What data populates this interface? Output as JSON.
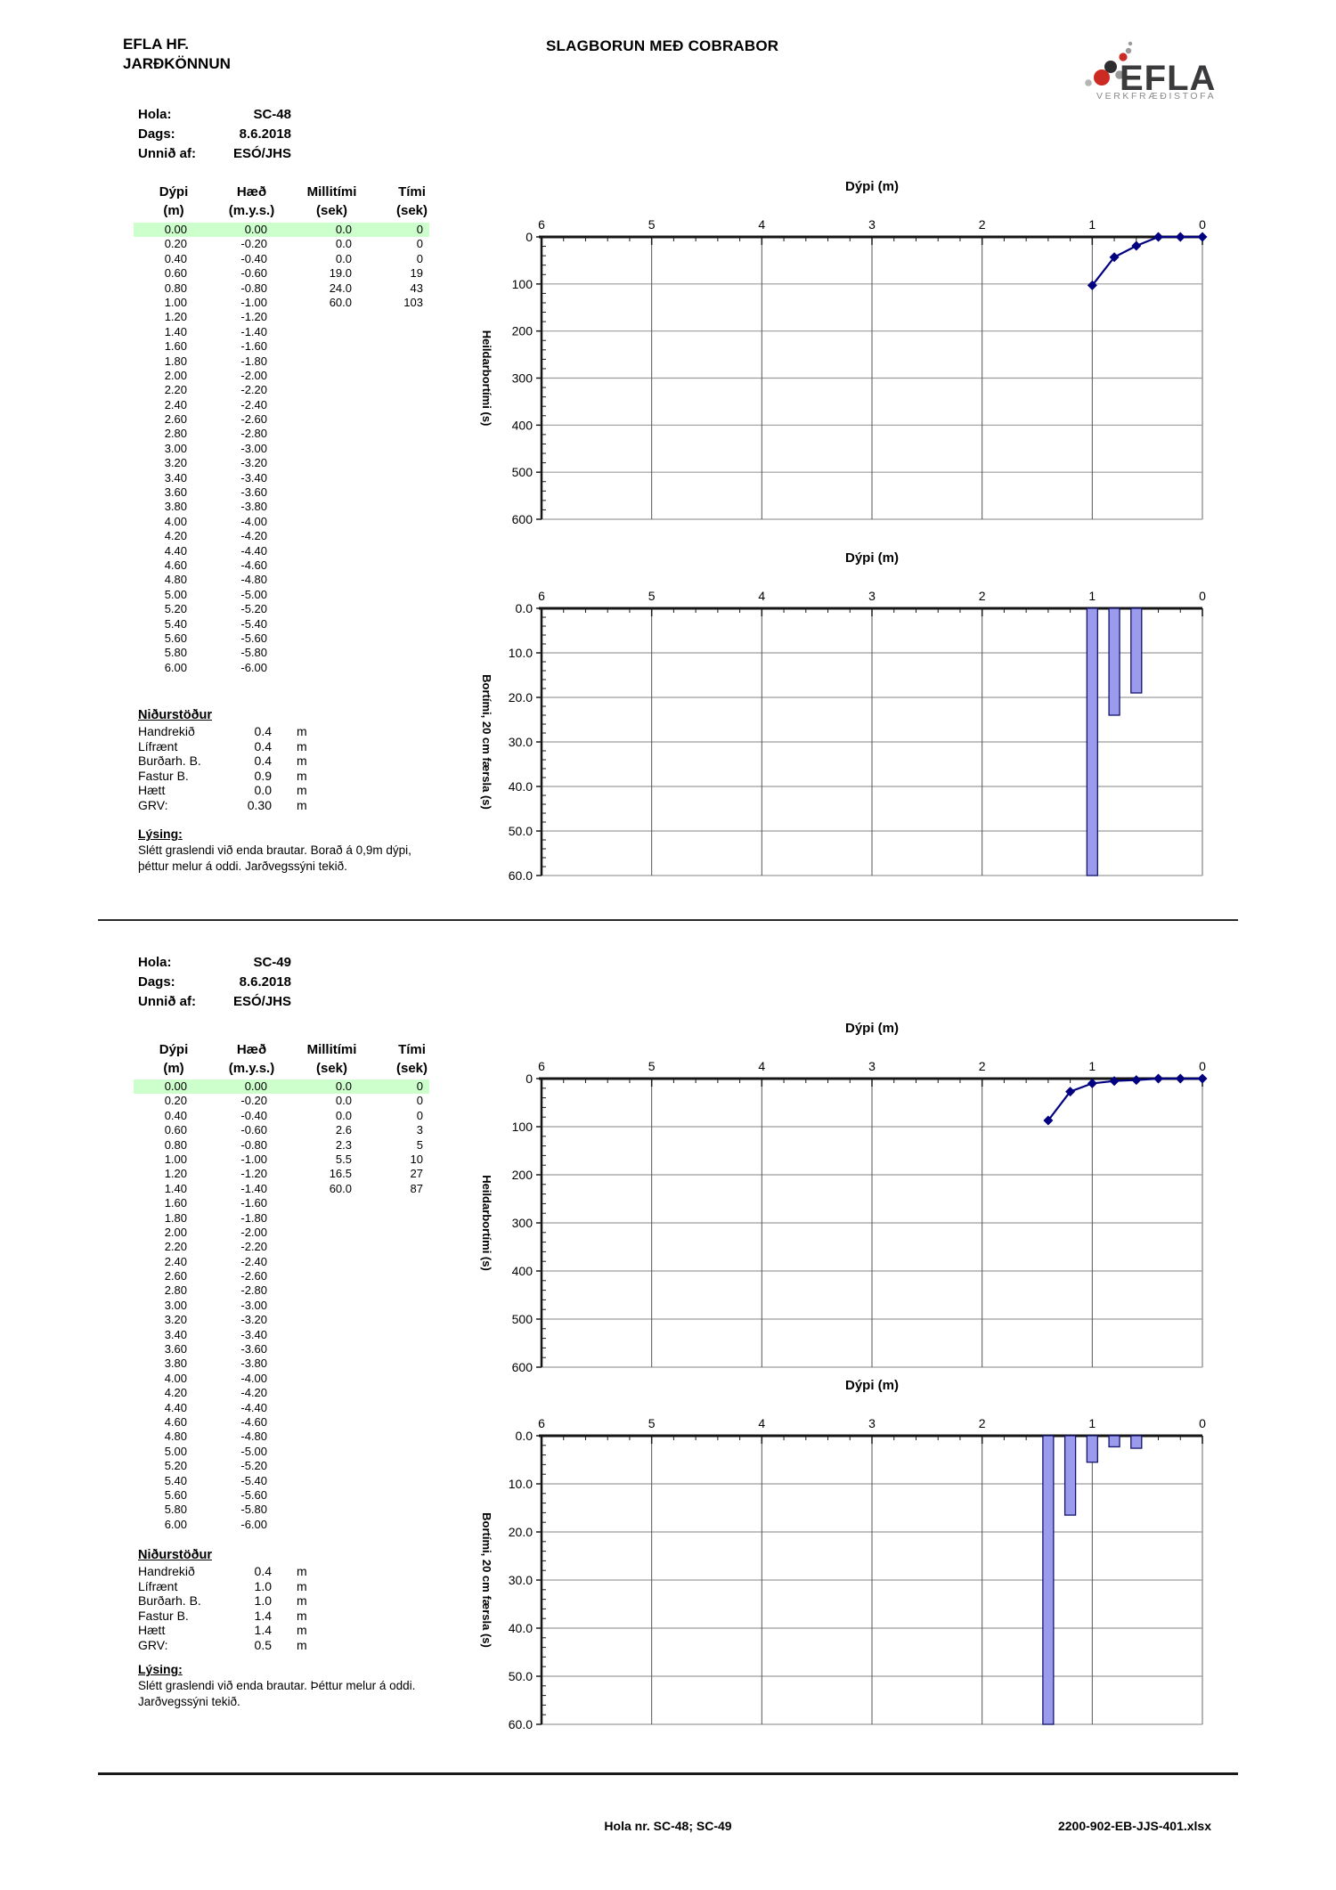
{
  "page": {
    "company": "EFLA HF.",
    "department": "JARÐKÖNNUN",
    "title": "SLAGBORUN MEÐ COBRABOR",
    "logo": {
      "text": "EFLA",
      "subtitle": "VERKFRÆÐISTOFA"
    },
    "footer": {
      "center": "Hola nr. SC-48; SC-49",
      "right": "2200-902-EB-JJS-401.xlsx"
    }
  },
  "colors": {
    "row_highlight": "#CCFFCC",
    "line_series": "#000080",
    "bar_fill": "#9B9BEE",
    "bar_border": "#14146E",
    "grid_h": "#9C9C9C",
    "grid_v": "#555555",
    "axis": "#151515",
    "logo_red": "#CC2B24",
    "logo_dark": "#2E2E30",
    "logo_gray": "#9A9A9A"
  },
  "tables": {
    "headers": [
      "Dýpi",
      "Hæð",
      "Millitími",
      "Tími"
    ],
    "units": [
      "(m)",
      "(m.y.s.)",
      "(sek)",
      "(sek)"
    ]
  },
  "sections": [
    {
      "meta": {
        "hola_label": "Hola:",
        "hola": "SC-48",
        "dags_label": "Dags:",
        "dags": "8.6.2018",
        "unnid_label": "Unnið af:",
        "unnid": "ESÓ/JHS"
      },
      "rows": [
        [
          "0.00",
          "0.00",
          "0.0",
          "0"
        ],
        [
          "0.20",
          "-0.20",
          "0.0",
          "0"
        ],
        [
          "0.40",
          "-0.40",
          "0.0",
          "0"
        ],
        [
          "0.60",
          "-0.60",
          "19.0",
          "19"
        ],
        [
          "0.80",
          "-0.80",
          "24.0",
          "43"
        ],
        [
          "1.00",
          "-1.00",
          "60.0",
          "103"
        ],
        [
          "1.20",
          "-1.20",
          "",
          ""
        ],
        [
          "1.40",
          "-1.40",
          "",
          ""
        ],
        [
          "1.60",
          "-1.60",
          "",
          ""
        ],
        [
          "1.80",
          "-1.80",
          "",
          ""
        ],
        [
          "2.00",
          "-2.00",
          "",
          ""
        ],
        [
          "2.20",
          "-2.20",
          "",
          ""
        ],
        [
          "2.40",
          "-2.40",
          "",
          ""
        ],
        [
          "2.60",
          "-2.60",
          "",
          ""
        ],
        [
          "2.80",
          "-2.80",
          "",
          ""
        ],
        [
          "3.00",
          "-3.00",
          "",
          ""
        ],
        [
          "3.20",
          "-3.20",
          "",
          ""
        ],
        [
          "3.40",
          "-3.40",
          "",
          ""
        ],
        [
          "3.60",
          "-3.60",
          "",
          ""
        ],
        [
          "3.80",
          "-3.80",
          "",
          ""
        ],
        [
          "4.00",
          "-4.00",
          "",
          ""
        ],
        [
          "4.20",
          "-4.20",
          "",
          ""
        ],
        [
          "4.40",
          "-4.40",
          "",
          ""
        ],
        [
          "4.60",
          "-4.60",
          "",
          ""
        ],
        [
          "4.80",
          "-4.80",
          "",
          ""
        ],
        [
          "5.00",
          "-5.00",
          "",
          ""
        ],
        [
          "5.20",
          "-5.20",
          "",
          ""
        ],
        [
          "5.40",
          "-5.40",
          "",
          ""
        ],
        [
          "5.60",
          "-5.60",
          "",
          ""
        ],
        [
          "5.80",
          "-5.80",
          "",
          ""
        ],
        [
          "6.00",
          "-6.00",
          "",
          ""
        ]
      ],
      "results": {
        "heading": "Niðurstöður",
        "items": [
          [
            "Handrekið",
            "0.4",
            "m"
          ],
          [
            "Lífrænt",
            "0.4",
            "m"
          ],
          [
            "Burðarh. B.",
            "0.4",
            "m"
          ],
          [
            "Fastur B.",
            "0.9",
            "m"
          ],
          [
            "Hætt",
            "0.0",
            "m"
          ],
          [
            "GRV:",
            "0.30",
            "m"
          ]
        ]
      },
      "lysing": {
        "heading": "Lýsing:",
        "lines": [
          "Slétt graslendi við enda brautar. Borað á 0,9m dýpi,",
          "þéttur melur á oddi. Jarðvegssýni tekið."
        ]
      }
    },
    {
      "meta": {
        "hola_label": "Hola:",
        "hola": "SC-49",
        "dags_label": "Dags:",
        "dags": "8.6.2018",
        "unnid_label": "Unnið af:",
        "unnid": "ESÓ/JHS"
      },
      "rows": [
        [
          "0.00",
          "0.00",
          "0.0",
          "0"
        ],
        [
          "0.20",
          "-0.20",
          "0.0",
          "0"
        ],
        [
          "0.40",
          "-0.40",
          "0.0",
          "0"
        ],
        [
          "0.60",
          "-0.60",
          "2.6",
          "3"
        ],
        [
          "0.80",
          "-0.80",
          "2.3",
          "5"
        ],
        [
          "1.00",
          "-1.00",
          "5.5",
          "10"
        ],
        [
          "1.20",
          "-1.20",
          "16.5",
          "27"
        ],
        [
          "1.40",
          "-1.40",
          "60.0",
          "87"
        ],
        [
          "1.60",
          "-1.60",
          "",
          ""
        ],
        [
          "1.80",
          "-1.80",
          "",
          ""
        ],
        [
          "2.00",
          "-2.00",
          "",
          ""
        ],
        [
          "2.20",
          "-2.20",
          "",
          ""
        ],
        [
          "2.40",
          "-2.40",
          "",
          ""
        ],
        [
          "2.60",
          "-2.60",
          "",
          ""
        ],
        [
          "2.80",
          "-2.80",
          "",
          ""
        ],
        [
          "3.00",
          "-3.00",
          "",
          ""
        ],
        [
          "3.20",
          "-3.20",
          "",
          ""
        ],
        [
          "3.40",
          "-3.40",
          "",
          ""
        ],
        [
          "3.60",
          "-3.60",
          "",
          ""
        ],
        [
          "3.80",
          "-3.80",
          "",
          ""
        ],
        [
          "4.00",
          "-4.00",
          "",
          ""
        ],
        [
          "4.20",
          "-4.20",
          "",
          ""
        ],
        [
          "4.40",
          "-4.40",
          "",
          ""
        ],
        [
          "4.60",
          "-4.60",
          "",
          ""
        ],
        [
          "4.80",
          "-4.80",
          "",
          ""
        ],
        [
          "5.00",
          "-5.00",
          "",
          ""
        ],
        [
          "5.20",
          "-5.20",
          "",
          ""
        ],
        [
          "5.40",
          "-5.40",
          "",
          ""
        ],
        [
          "5.60",
          "-5.60",
          "",
          ""
        ],
        [
          "5.80",
          "-5.80",
          "",
          ""
        ],
        [
          "6.00",
          "-6.00",
          "",
          ""
        ]
      ],
      "results": {
        "heading": "Niðurstöður",
        "items": [
          [
            "Handrekið",
            "0.4",
            "m"
          ],
          [
            "Lífrænt",
            "1.0",
            "m"
          ],
          [
            "Burðarh. B.",
            "1.0",
            "m"
          ],
          [
            "Fastur B.",
            "1.4",
            "m"
          ],
          [
            "Hætt",
            "1.4",
            "m"
          ],
          [
            "GRV:",
            "0.5",
            "m"
          ]
        ]
      },
      "lysing": {
        "heading": "Lýsing:",
        "lines": [
          "Slétt graslendi við enda brautar. Þéttur melur á oddi.",
          "Jarðvegssýni tekið."
        ]
      }
    }
  ],
  "chart_data": [
    {
      "id": "sc48-cumulative-time",
      "type": "line",
      "title": "Dýpi (m)",
      "ylabel": "Heildarbortími (s)",
      "x": [
        0,
        0.2,
        0.4,
        0.6,
        0.8,
        1.0
      ],
      "y": [
        0,
        0,
        0,
        19,
        43,
        103
      ],
      "xlim": [
        6,
        0
      ],
      "ylim": [
        0,
        600
      ],
      "xticks": [
        6,
        5,
        4,
        3,
        2,
        1,
        0
      ],
      "ytick_labels": [
        "0",
        "100",
        "200",
        "300",
        "400",
        "500",
        "600"
      ],
      "x_minor_step": 0.2,
      "y_minor_step": 20,
      "grid": true,
      "legend": "none",
      "marker": "diamond"
    },
    {
      "id": "sc48-interval-time",
      "type": "bar",
      "title": "Dýpi (m)",
      "ylabel": "Bortími, 20 cm færsla (s)",
      "x": [
        0.6,
        0.8,
        1.0
      ],
      "values": [
        19,
        24,
        60
      ],
      "xlim": [
        6,
        0
      ],
      "ylim": [
        0,
        60
      ],
      "xticks": [
        6,
        5,
        4,
        3,
        2,
        1,
        0
      ],
      "ytick_labels": [
        "0.0",
        "10.0",
        "20.0",
        "30.0",
        "40.0",
        "50.0",
        "60.0"
      ],
      "x_minor_step": 0.2,
      "y_minor_step": 2,
      "grid": true,
      "legend": "none"
    },
    {
      "id": "sc49-cumulative-time",
      "type": "line",
      "title": "Dýpi (m)",
      "ylabel": "Heildarbortími (s)",
      "x": [
        0,
        0.2,
        0.4,
        0.6,
        0.8,
        1.0,
        1.2,
        1.4
      ],
      "y": [
        0,
        0,
        0,
        3,
        5,
        10,
        27,
        87
      ],
      "xlim": [
        6,
        0
      ],
      "ylim": [
        0,
        600
      ],
      "xticks": [
        6,
        5,
        4,
        3,
        2,
        1,
        0
      ],
      "ytick_labels": [
        "0",
        "100",
        "200",
        "300",
        "400",
        "500",
        "600"
      ],
      "x_minor_step": 0.2,
      "y_minor_step": 20,
      "grid": true,
      "legend": "none",
      "marker": "diamond"
    },
    {
      "id": "sc49-interval-time",
      "type": "bar",
      "title": "Dýpi (m)",
      "ylabel": "Bortími, 20 cm færsla (s)",
      "x": [
        0.6,
        0.8,
        1.0,
        1.2,
        1.4
      ],
      "values": [
        2.6,
        2.3,
        5.5,
        16.5,
        60
      ],
      "xlim": [
        6,
        0
      ],
      "ylim": [
        0,
        60
      ],
      "xticks": [
        6,
        5,
        4,
        3,
        2,
        1,
        0
      ],
      "ytick_labels": [
        "0.0",
        "10.0",
        "20.0",
        "30.0",
        "40.0",
        "50.0",
        "60.0"
      ],
      "x_minor_step": 0.2,
      "y_minor_step": 2,
      "grid": true,
      "legend": "none"
    }
  ]
}
